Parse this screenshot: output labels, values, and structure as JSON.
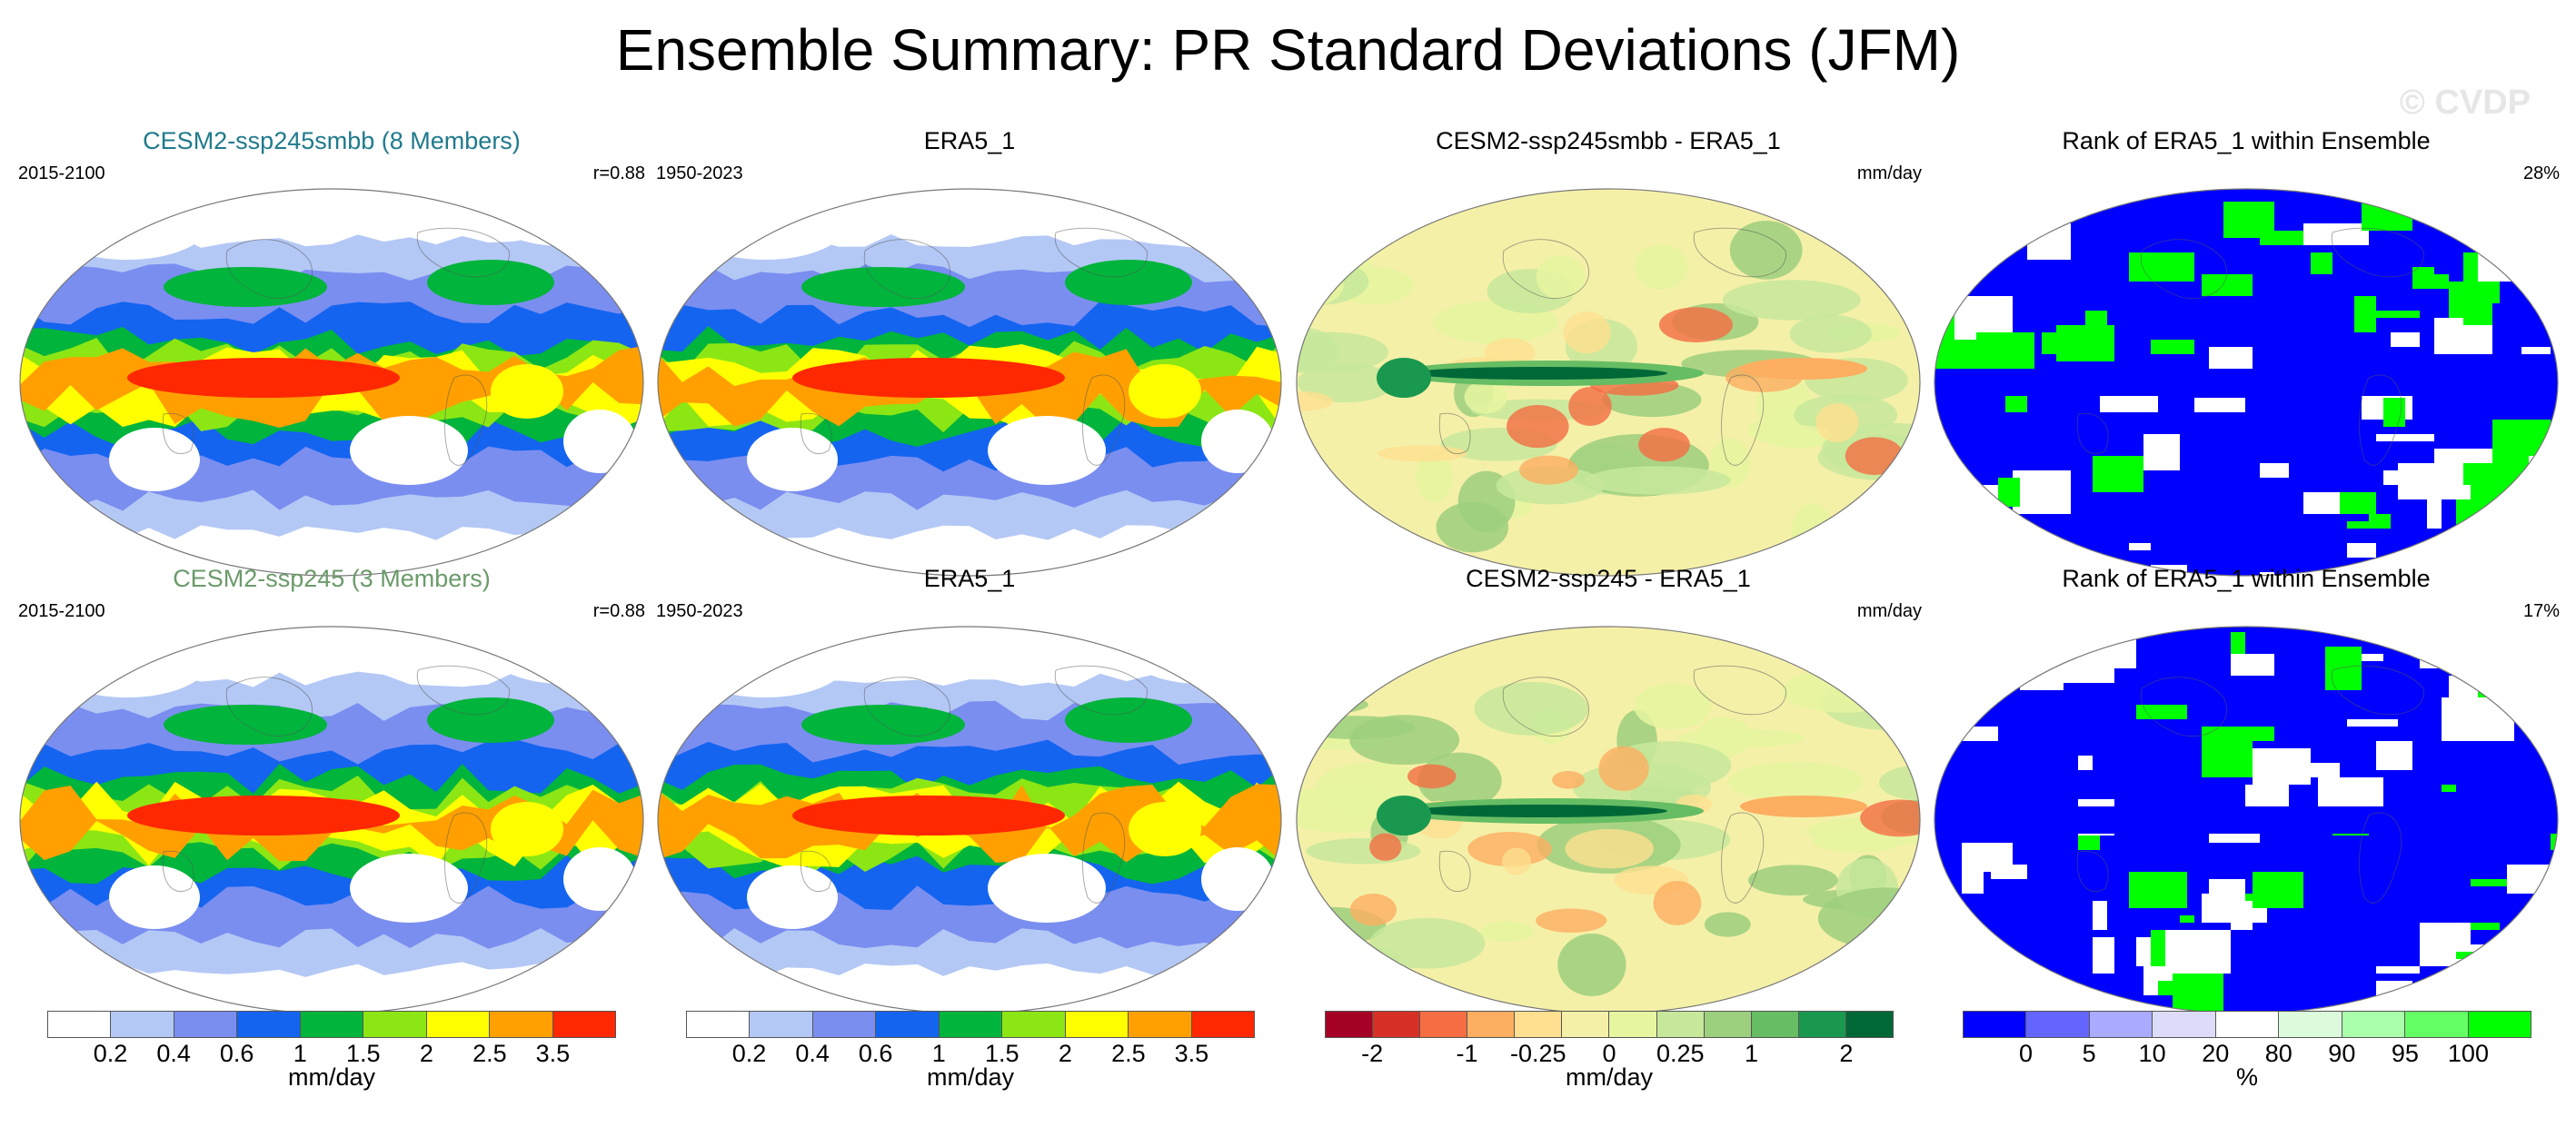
{
  "title": "Ensemble Summary: PR Standard Deviations (JFM)",
  "watermark": "© CVDP",
  "panels": [
    {
      "title": "CESM2-ssp245smbb (8 Members)",
      "title_color": "#1f7a8c",
      "left": "2015-2100",
      "right": "r=0.88",
      "kind": "std"
    },
    {
      "title": "ERA5_1",
      "title_color": "#000000",
      "left": "1950-2023",
      "right": "",
      "kind": "std"
    },
    {
      "title": "CESM2-ssp245smbb - ERA5_1",
      "title_color": "#000000",
      "left": "",
      "right": "mm/day",
      "kind": "diff"
    },
    {
      "title": "Rank of ERA5_1 within Ensemble",
      "title_color": "#000000",
      "left": "",
      "right": "28%",
      "kind": "rank"
    },
    {
      "title": "CESM2-ssp245 (3 Members)",
      "title_color": "#6b9a6b",
      "left": "2015-2100",
      "right": "r=0.88",
      "kind": "std"
    },
    {
      "title": "ERA5_1",
      "title_color": "#000000",
      "left": "1950-2023",
      "right": "",
      "kind": "std"
    },
    {
      "title": "CESM2-ssp245 - ERA5_1",
      "title_color": "#000000",
      "left": "",
      "right": "mm/day",
      "kind": "diff"
    },
    {
      "title": "Rank of ERA5_1 within Ensemble",
      "title_color": "#000000",
      "left": "",
      "right": "17%",
      "kind": "rank"
    }
  ],
  "colorbars": [
    {
      "colors": [
        "#ffffff",
        "#b4c8f5",
        "#7a8ef0",
        "#1464f0",
        "#00b43c",
        "#8ce614",
        "#ffff00",
        "#ffa000",
        "#ff2800"
      ],
      "ticks": [
        "0.2",
        "0.4",
        "0.6",
        "1",
        "1.5",
        "2",
        "2.5",
        "3.5"
      ],
      "unit": "mm/day"
    },
    {
      "colors": [
        "#ffffff",
        "#b4c8f5",
        "#7a8ef0",
        "#1464f0",
        "#00b43c",
        "#8ce614",
        "#ffff00",
        "#ffa000",
        "#ff2800"
      ],
      "ticks": [
        "0.2",
        "0.4",
        "0.6",
        "1",
        "1.5",
        "2",
        "2.5",
        "3.5"
      ],
      "unit": "mm/day"
    },
    {
      "colors": [
        "#a50026",
        "#d73027",
        "#f46d43",
        "#fdae61",
        "#fee090",
        "#f5f0a8",
        "#e6f5a0",
        "#c7e89b",
        "#9ccf7e",
        "#66bd63",
        "#1a9850",
        "#006837"
      ],
      "ticks": [
        "-2",
        "-1",
        "-0.25",
        "0",
        "0.25",
        "1",
        "2"
      ],
      "tick_slots": [
        1,
        3,
        4.5,
        6,
        7.5,
        9,
        11
      ],
      "unit": "mm/day"
    },
    {
      "colors": [
        "#0000ff",
        "#6464ff",
        "#aaaaff",
        "#dcdcfa",
        "#ffffff",
        "#dcfadc",
        "#aaffaa",
        "#64ff64",
        "#00ff00"
      ],
      "ticks": [
        "0",
        "5",
        "10",
        "20",
        "80",
        "90",
        "95",
        "100"
      ],
      "unit": "%"
    }
  ],
  "chart_data": {
    "type": "map-grid",
    "title": "Ensemble Summary: PR Standard Deviations (JFM)",
    "rows": [
      {
        "model": "CESM2-ssp245smbb (8 Members)",
        "period": "2015-2100",
        "pattern_correlation": 0.88,
        "rank_percent": 28
      },
      {
        "model": "CESM2-ssp245 (3 Members)",
        "period": "2015-2100",
        "pattern_correlation": 0.88,
        "rank_percent": 17
      }
    ],
    "observation": {
      "name": "ERA5_1",
      "period": "1950-2023"
    },
    "std_levels_mm_per_day": [
      0.2,
      0.4,
      0.6,
      1,
      1.5,
      2,
      2.5,
      3.5
    ],
    "diff_levels_mm_per_day": [
      -2,
      -1,
      -0.25,
      0,
      0.25,
      1,
      2
    ],
    "rank_levels_percent": [
      0,
      5,
      10,
      20,
      80,
      90,
      95,
      100
    ]
  }
}
